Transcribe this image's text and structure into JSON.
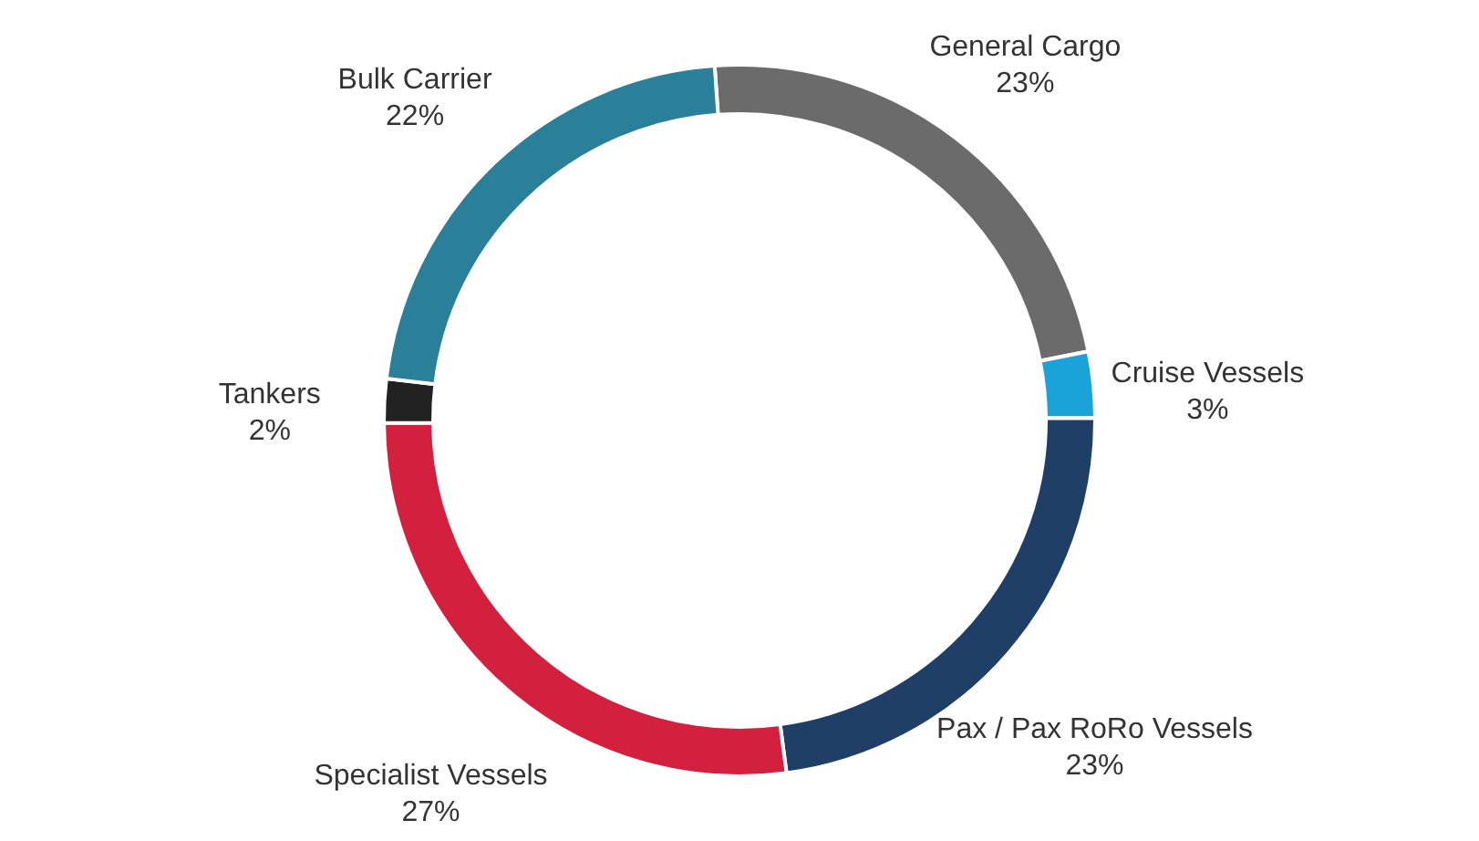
{
  "chart_data": {
    "type": "donut",
    "categories": [
      "General Cargo",
      "Cruise Vessels",
      "Pax / Pax RoRo Vessels",
      "Specialist Vessels",
      "Tankers",
      "Bulk Carrier"
    ],
    "values": [
      23,
      3,
      23,
      27,
      2,
      22
    ],
    "colors": [
      "#6b6b6b",
      "#1aa3d9",
      "#1f3f66",
      "#d4203f",
      "#222222",
      "#2a7f99"
    ],
    "value_labels": [
      "23%",
      "3%",
      "23%",
      "27%",
      "2%",
      "22%"
    ]
  }
}
